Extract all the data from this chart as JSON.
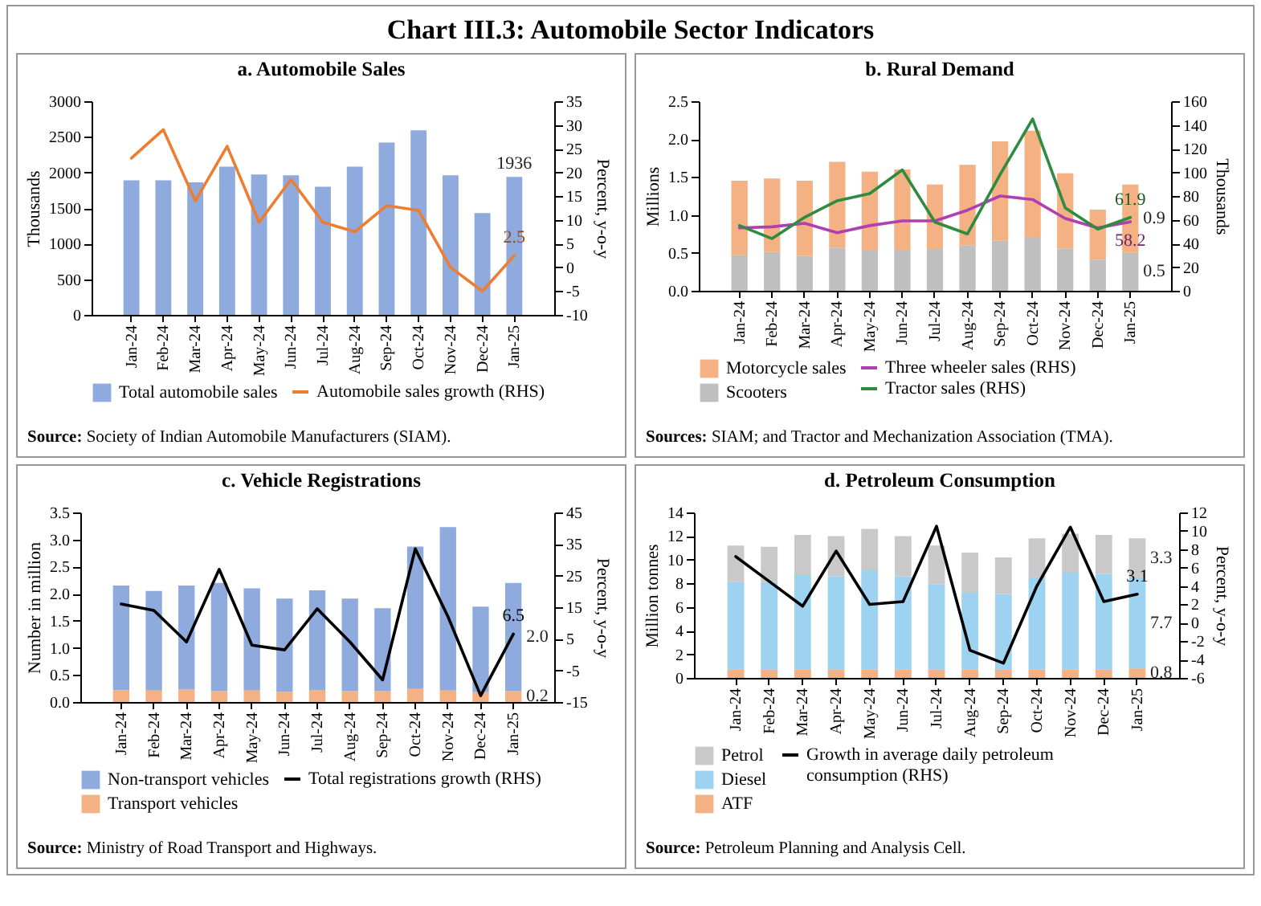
{
  "chart_data": [
    {
      "type": "other",
      "title": "Chart III.3: Automobile Sector Indicators"
    },
    {
      "type": "bar",
      "title": "a. Automobile Sales",
      "ylabel": "Thousands",
      "y2label": "Percent, y-o-y",
      "legend": "bottom",
      "categories": [
        "Jan-24",
        "Feb-24",
        "Mar-24",
        "Apr-24",
        "May-24",
        "Jun-24",
        "Jul-24",
        "Aug-24",
        "Sep-24",
        "Oct-24",
        "Nov-24",
        "Dec-24",
        "Jan-25"
      ],
      "ylim": [
        0,
        3000
      ],
      "yticks": [
        0,
        500,
        1000,
        1500,
        2000,
        2500,
        3000
      ],
      "y2lim": [
        -10,
        35
      ],
      "y2ticks": [
        -10,
        -5,
        0,
        5,
        10,
        15,
        20,
        25,
        30,
        35
      ],
      "series": [
        {
          "name": "Total automobile sales",
          "type": "bar",
          "color": "#8faadc",
          "values": [
            1890,
            1890,
            1860,
            2080,
            1970,
            1960,
            1800,
            2080,
            2420,
            2590,
            1960,
            1430,
            1936
          ],
          "value_labels": [
            null,
            null,
            null,
            null,
            null,
            null,
            null,
            null,
            null,
            null,
            null,
            null,
            "1936"
          ]
        },
        {
          "name": "Automobile sales growth (RHS)",
          "type": "line",
          "axis": "y2",
          "color": "#ed7d31",
          "values": [
            23,
            29,
            14,
            25.5,
            9.5,
            18.5,
            9.5,
            7.5,
            13,
            12,
            0,
            -5,
            2.5
          ],
          "value_labels": [
            null,
            null,
            null,
            null,
            null,
            null,
            null,
            null,
            null,
            null,
            null,
            null,
            "2.5"
          ]
        }
      ],
      "annotations": [
        "Source: Society of Indian Automobile Manufacturers (SIAM)."
      ]
    },
    {
      "type": "bar",
      "title": "b. Rural Demand",
      "ylabel": "Millions",
      "y2label": "Thousands",
      "legend": "bottom",
      "stacked": true,
      "categories": [
        "Jan-24",
        "Feb-24",
        "Mar-24",
        "Apr-24",
        "May-24",
        "Jun-24",
        "Jul-24",
        "Aug-24",
        "Sep-24",
        "Oct-24",
        "Nov-24",
        "Dec-24",
        "Jan-25"
      ],
      "ylim": [
        0,
        2.5
      ],
      "yticks": [
        {
          "value": 0,
          "label": "0.0"
        },
        0.5,
        {
          "value": 1,
          "label": "1.0"
        },
        1.5,
        {
          "value": 2,
          "label": "2.0"
        },
        2.5
      ],
      "y2lim": [
        0,
        160
      ],
      "y2ticks": [
        0,
        20,
        40,
        60,
        80,
        100,
        120,
        140,
        160
      ],
      "series": [
        {
          "name": "Scooters",
          "type": "bar",
          "color": "#bfbfbf",
          "values": [
            0.47,
            0.51,
            0.46,
            0.57,
            0.53,
            0.54,
            0.55,
            0.6,
            0.66,
            0.71,
            0.56,
            0.41,
            0.5
          ],
          "value_labels": [
            null,
            null,
            null,
            null,
            null,
            null,
            null,
            null,
            null,
            null,
            null,
            null,
            "0.5"
          ]
        },
        {
          "name": "Motorcycle sales",
          "type": "bar",
          "color": "#f4b183",
          "values": [
            0.98,
            0.97,
            0.99,
            1.13,
            1.04,
            1.06,
            0.85,
            1.06,
            1.31,
            1.4,
            0.99,
            0.66,
            0.9
          ],
          "value_labels": [
            null,
            null,
            null,
            null,
            null,
            null,
            null,
            null,
            null,
            null,
            null,
            null,
            "0.9"
          ]
        },
        {
          "name": "Three wheeler sales (RHS)",
          "type": "line",
          "axis": "y2",
          "color": "#b03fb0",
          "values": [
            53,
            54,
            57,
            49,
            55,
            59,
            59,
            68,
            80,
            77,
            61,
            53,
            58.2
          ],
          "value_labels": [
            null,
            null,
            null,
            null,
            null,
            null,
            null,
            null,
            null,
            null,
            null,
            null,
            "58.2"
          ]
        },
        {
          "name": "Tractor sales (RHS)",
          "type": "line",
          "axis": "y2",
          "color": "#2e8b3f",
          "values": [
            55,
            44,
            62,
            76,
            82,
            102,
            58,
            48,
            98,
            145,
            70,
            52,
            61.9
          ],
          "value_labels": [
            null,
            null,
            null,
            null,
            null,
            null,
            null,
            null,
            null,
            null,
            null,
            null,
            "61.9"
          ]
        }
      ],
      "annotations": [
        "Sources: SIAM; and Tractor and Mechanization Association (TMA)."
      ]
    },
    {
      "type": "bar",
      "title": "c. Vehicle Registrations",
      "ylabel": "Number in million",
      "y2label": "Percent, y-o-y",
      "legend": "bottom",
      "stacked": true,
      "categories": [
        "Jan-24",
        "Feb-24",
        "Mar-24",
        "Apr-24",
        "May-24",
        "Jun-24",
        "Jul-24",
        "Aug-24",
        "Sep-24",
        "Oct-24",
        "Nov-24",
        "Dec-24",
        "Jan-25"
      ],
      "ylim": [
        0,
        3.5
      ],
      "yticks": [
        {
          "value": 0,
          "label": "0.0"
        },
        0.5,
        {
          "value": 1,
          "label": "1.0"
        },
        1.5,
        {
          "value": 2,
          "label": "2.0"
        },
        2.5,
        {
          "value": 3,
          "label": "3.0"
        },
        3.5
      ],
      "y2lim": [
        -15,
        45
      ],
      "y2ticks": [
        -15,
        -5,
        5,
        15,
        25,
        35,
        45
      ],
      "series": [
        {
          "name": "Transport vehicles",
          "type": "bar",
          "color": "#f4b183",
          "values": [
            0.22,
            0.21,
            0.23,
            0.2,
            0.21,
            0.19,
            0.22,
            0.2,
            0.2,
            0.24,
            0.21,
            0.18,
            0.2
          ],
          "value_labels": [
            null,
            null,
            null,
            null,
            null,
            null,
            null,
            null,
            null,
            null,
            null,
            null,
            "0.2"
          ]
        },
        {
          "name": "Non-transport vehicles",
          "type": "bar",
          "color": "#8faadc",
          "values": [
            1.93,
            1.84,
            1.92,
            2.0,
            1.89,
            1.72,
            1.84,
            1.71,
            1.53,
            2.63,
            3.02,
            1.58,
            2.0
          ],
          "value_labels": [
            null,
            null,
            null,
            null,
            null,
            null,
            null,
            null,
            null,
            null,
            null,
            null,
            "2.0"
          ]
        },
        {
          "name": "Total registrations growth (RHS)",
          "type": "line",
          "axis": "y2",
          "color": "#000000",
          "values": [
            16,
            14,
            4,
            27,
            3,
            1.5,
            14.5,
            4,
            -8,
            33.5,
            12,
            -13,
            6.5
          ],
          "value_labels": [
            null,
            null,
            null,
            null,
            null,
            null,
            null,
            null,
            null,
            null,
            null,
            null,
            "6.5"
          ]
        }
      ],
      "annotations": [
        "Source: Ministry of Road Transport and Highways."
      ]
    },
    {
      "type": "bar",
      "title": "d. Petroleum Consumption",
      "ylabel": "Million tonnes",
      "y2label": "Percent, y-o-y",
      "legend": "bottom",
      "stacked": true,
      "categories": [
        "Jan-24",
        "Feb-24",
        "Mar-24",
        "Apr-24",
        "May-24",
        "Jun-24",
        "Jul-24",
        "Aug-24",
        "Sep-24",
        "Oct-24",
        "Nov-24",
        "Dec-24",
        "Jan-25"
      ],
      "ylim": [
        0,
        14
      ],
      "yticks": [
        0,
        2,
        4,
        6,
        8,
        10,
        12,
        14
      ],
      "y2lim": [
        -6,
        12
      ],
      "y2ticks": [
        -6,
        -4,
        -2,
        0,
        2,
        4,
        6,
        8,
        10,
        12
      ],
      "series": [
        {
          "name": "ATF",
          "type": "bar",
          "color": "#f4b183",
          "values": [
            0.7,
            0.7,
            0.7,
            0.7,
            0.7,
            0.7,
            0.7,
            0.7,
            0.7,
            0.7,
            0.7,
            0.7,
            0.8
          ],
          "value_labels": [
            null,
            null,
            null,
            null,
            null,
            null,
            null,
            null,
            null,
            null,
            null,
            null,
            "0.8"
          ]
        },
        {
          "name": "Diesel",
          "type": "bar",
          "color": "#9dd3f0",
          "values": [
            7.4,
            7.4,
            8.0,
            7.9,
            8.4,
            7.9,
            7.2,
            6.5,
            6.4,
            7.8,
            8.2,
            8.1,
            7.7
          ],
          "value_labels": [
            null,
            null,
            null,
            null,
            null,
            null,
            null,
            null,
            null,
            null,
            null,
            null,
            "7.7"
          ]
        },
        {
          "name": "Petrol",
          "type": "bar",
          "color": "#c9c9c9",
          "values": [
            3.1,
            3.0,
            3.4,
            3.4,
            3.5,
            3.4,
            3.3,
            3.4,
            3.1,
            3.3,
            3.3,
            3.3,
            3.3
          ],
          "value_labels": [
            null,
            null,
            null,
            null,
            null,
            null,
            null,
            null,
            null,
            null,
            null,
            null,
            "3.3"
          ]
        },
        {
          "name": "Growth in average daily petroleum consumption (RHS)",
          "type": "line",
          "axis": "y2",
          "color": "#000000",
          "values": [
            7.2,
            4.5,
            1.8,
            7.8,
            2.0,
            2.3,
            10.5,
            -3.0,
            -4.4,
            4,
            10.4,
            2.3,
            3.1
          ],
          "value_labels": [
            null,
            null,
            null,
            null,
            null,
            null,
            null,
            null,
            null,
            null,
            null,
            null,
            "3.1"
          ]
        }
      ],
      "annotations": [
        "Source: Petroleum Planning and Analysis Cell."
      ]
    }
  ]
}
